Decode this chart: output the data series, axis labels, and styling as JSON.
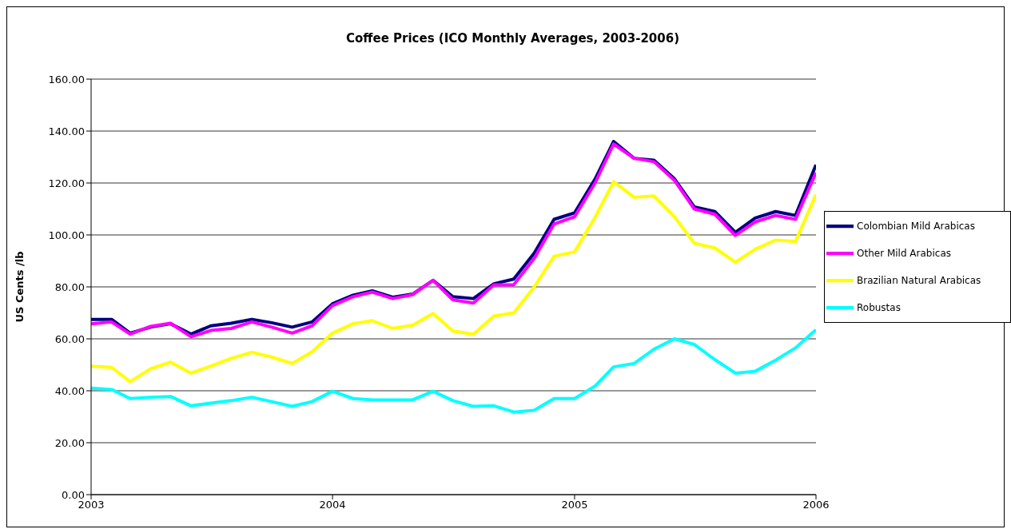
{
  "chart_data": {
    "type": "line",
    "title": "Coffee Prices (ICO Monthly Averages, 2003-2006)",
    "ylabel": "US Cents /lb",
    "x": [
      "2003-01",
      "2003-02",
      "2003-03",
      "2003-04",
      "2003-05",
      "2003-06",
      "2003-07",
      "2003-08",
      "2003-09",
      "2003-10",
      "2003-11",
      "2003-12",
      "2004-01",
      "2004-02",
      "2004-03",
      "2004-04",
      "2004-05",
      "2004-06",
      "2004-07",
      "2004-08",
      "2004-09",
      "2004-10",
      "2004-11",
      "2004-12",
      "2005-01",
      "2005-02",
      "2005-03",
      "2005-04",
      "2005-05",
      "2005-06",
      "2005-07",
      "2005-08",
      "2005-09",
      "2005-10",
      "2005-11",
      "2005-12",
      "2006-01"
    ],
    "series": [
      {
        "name": "Colombian Mild Arabicas",
        "color": "#000080",
        "values": [
          67.5,
          67.5,
          62.2,
          64.5,
          65.8,
          61.8,
          65,
          66,
          67.5,
          66.2,
          64.5,
          66.5,
          73.5,
          76.8,
          78.5,
          76,
          77.2,
          82.5,
          76.2,
          75.5,
          81.2,
          83,
          93,
          106,
          108.5,
          121.5,
          136,
          129.5,
          128.8,
          121.6,
          110.8,
          109,
          101,
          106.5,
          109,
          107.5,
          127
        ]
      },
      {
        "name": "Other Mild Arabicas",
        "color": "#ff00ff",
        "values": [
          65.8,
          66.5,
          61.8,
          64.8,
          66,
          60.8,
          63.2,
          64,
          66.5,
          64.5,
          62.2,
          65,
          72.8,
          76.2,
          78,
          75.5,
          77,
          82.5,
          75,
          73.8,
          80.8,
          80.8,
          91,
          104.2,
          107,
          120,
          135,
          129.5,
          128.2,
          121,
          110,
          108,
          99.8,
          105,
          107.5,
          106,
          124
        ]
      },
      {
        "name": "Brazilian Natural Arabicas",
        "color": "#ffff00",
        "values": [
          49.5,
          49,
          43.5,
          48.5,
          51,
          46.8,
          49.5,
          52.5,
          54.8,
          53,
          50.5,
          55,
          62.2,
          65.8,
          67,
          64,
          65.2,
          69.8,
          63,
          61.8,
          68.8,
          70,
          80,
          91.8,
          93.5,
          106.8,
          120.5,
          114.5,
          115,
          107,
          96.8,
          95,
          89.5,
          94.5,
          98,
          97.5,
          115.5
        ]
      },
      {
        "name": "Robustas",
        "color": "#00ffff",
        "values": [
          41,
          40.5,
          37,
          37.5,
          37.8,
          34.2,
          35.2,
          36.2,
          37.5,
          35.8,
          34,
          35.8,
          39.8,
          37,
          36.5,
          36.5,
          36.5,
          39.8,
          36.2,
          34,
          34.2,
          31.8,
          32.5,
          37,
          37,
          41.8,
          49.2,
          50.5,
          56,
          60,
          57.8,
          52,
          46.8,
          47.5,
          51.8,
          56.5,
          63.5
        ]
      }
    ],
    "xlim": [
      "2003",
      "2006"
    ],
    "xticks": [
      "2003",
      "2004",
      "2005",
      "2006"
    ],
    "ylim": [
      0,
      160
    ],
    "yticks": [
      {
        "value": 0,
        "label": "0.00"
      },
      {
        "value": 20,
        "label": "20.00"
      },
      {
        "value": 40,
        "label": "40.00"
      },
      {
        "value": 60,
        "label": "60.00"
      },
      {
        "value": 80,
        "label": "80.00"
      },
      {
        "value": 100,
        "label": "100.00"
      },
      {
        "value": 120,
        "label": "120.00"
      },
      {
        "value": 140,
        "label": "140.00"
      },
      {
        "value": 160,
        "label": "160.00"
      }
    ],
    "grid": "y",
    "legend": "right"
  }
}
